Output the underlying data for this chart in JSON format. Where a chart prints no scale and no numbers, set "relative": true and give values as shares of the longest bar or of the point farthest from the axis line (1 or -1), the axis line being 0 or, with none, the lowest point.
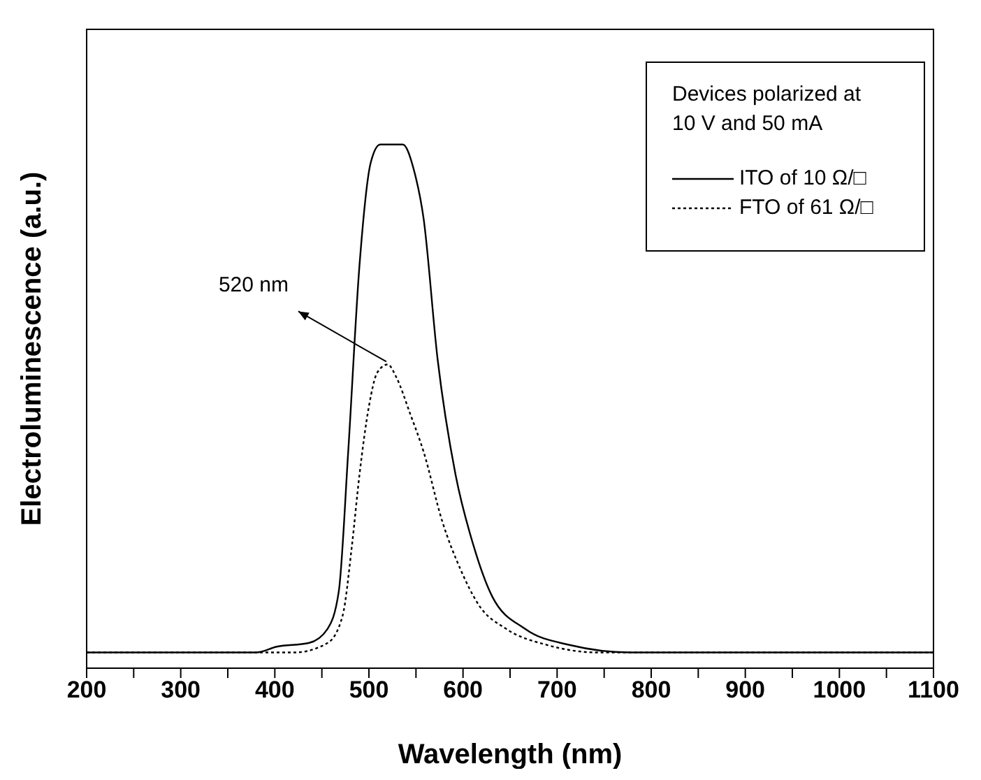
{
  "chart_data": {
    "type": "line",
    "relative": true,
    "xlabel": "Wavelength (nm)",
    "ylabel": "Electroluminescence (a.u.)",
    "legend_title": "Devices polarized at 10 V and 50 mA",
    "legend": "top right",
    "grid": false,
    "marker": "none",
    "xlim": [
      200,
      1100
    ],
    "xticks": [
      200,
      {
        "value": 250,
        "label": null
      },
      300,
      {
        "value": 350,
        "label": null
      },
      400,
      {
        "value": 450,
        "label": null
      },
      500,
      {
        "value": 550,
        "label": null
      },
      600,
      {
        "value": 650,
        "label": null
      },
      700,
      {
        "value": 750,
        "label": null
      },
      800,
      {
        "value": 850,
        "label": null
      },
      900,
      {
        "value": 950,
        "label": null
      },
      1000,
      {
        "value": 1050,
        "label": null
      },
      1100
    ],
    "series": [
      {
        "name": "ITO of 10 Ω/□",
        "color": "#000000",
        "line_style": "solid",
        "x": [
          200,
          380,
          402,
          436,
          456,
          468,
          478,
          490,
          502,
          512,
          536,
          548,
          558,
          573,
          592,
          611,
          631,
          666,
          714,
          778,
          1100
        ],
        "values": [
          0.03,
          0.03,
          0.041,
          0.048,
          0.075,
          0.147,
          0.414,
          0.77,
          0.966,
          1.0,
          1.0,
          0.95,
          0.86,
          0.59,
          0.37,
          0.235,
          0.137,
          0.075,
          0.044,
          0.03,
          0.03
        ]
      },
      {
        "name": "FTO of 61 Ω/□",
        "color": "#000000",
        "line_style": "dotted",
        "x": [
          200,
          421,
          456,
          472,
          482,
          490,
          500,
          509,
          520,
          529,
          544,
          558,
          578,
          597,
          617,
          646,
          690,
          743,
          1100
        ],
        "values": [
          0.03,
          0.03,
          0.048,
          0.1,
          0.235,
          0.37,
          0.5,
          0.565,
          0.58,
          0.556,
          0.485,
          0.414,
          0.28,
          0.19,
          0.12,
          0.075,
          0.044,
          0.03,
          0.03
        ]
      }
    ],
    "annotations": [
      {
        "text": "520 nm",
        "x": 520,
        "y": 0.58
      }
    ]
  }
}
